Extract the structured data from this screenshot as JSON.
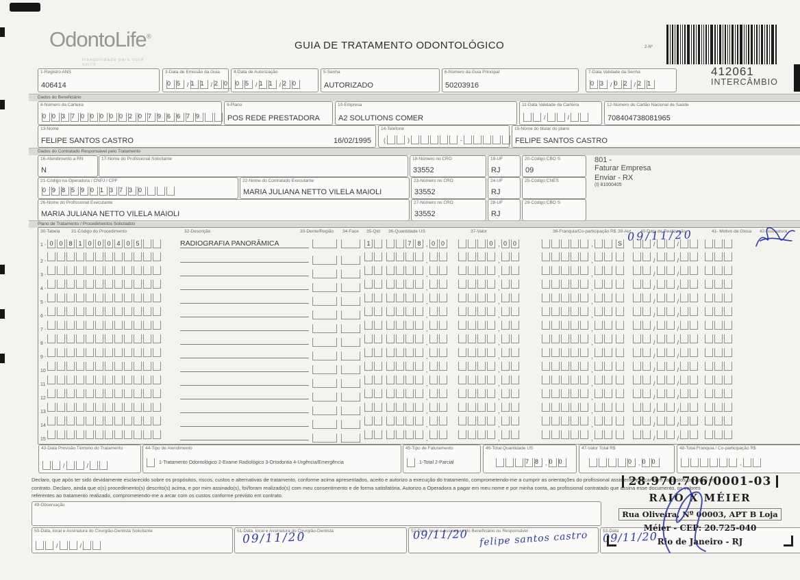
{
  "brand": {
    "name": "OdontoLife",
    "reg": "®",
    "tagline": "tranquilidade para você sorrir"
  },
  "title": "GUIA DE TRATAMENTO ODONTOLÓGICO",
  "codes": {
    "barcode_label": "2-Nº",
    "number": "412061",
    "exchange": "INTERCÂMBIO"
  },
  "header": {
    "registro_ans": {
      "label": "1-Registro ANS",
      "value": "406414"
    },
    "emissao": {
      "label": "3-Data de Emissão da Guia",
      "digits": [
        "0",
        "5",
        "/",
        "1",
        "1",
        "/",
        "2",
        "0"
      ]
    },
    "autorizacao": {
      "label": "4-Data de Autorização",
      "digits": [
        "0",
        "5",
        "/",
        "1",
        "1",
        "/",
        "2",
        "0"
      ]
    },
    "senha": {
      "label": "5-Senha",
      "value": "AUTORIZADO"
    },
    "guia_principal": {
      "label": "6-Número da Guia Principal",
      "value": "50203916"
    },
    "validade_senha": {
      "label": "7-Data Validade da Senha",
      "digits": [
        "0",
        "3",
        "/",
        "0",
        "2",
        "/",
        "2",
        "1"
      ]
    }
  },
  "sections": {
    "beneficiario": "Dados do Beneficiário",
    "contratado": "Dados do Contratado Responsável pelo Tratamento",
    "plano": "Plano de Tratamento / Procedimentos Solicitados"
  },
  "beneficiario": {
    "carteira": {
      "label": "8-Número da Carteira",
      "digits": [
        "0",
        "0",
        "3",
        "7",
        "0",
        "0",
        "0",
        "0",
        "0",
        "2",
        "0",
        "7",
        "9",
        "6",
        "6",
        "7",
        "9",
        "",
        "",
        ""
      ]
    },
    "plano": {
      "label": "9-Plano",
      "value": "POS REDE PRESTADORA"
    },
    "empresa": {
      "label": "10-Empresa",
      "value": "A2 SOLUTIONS COMER"
    },
    "validade_carteira": {
      "label": "11-Data Validade da Carteira",
      "digits": [
        "",
        "",
        "/",
        "",
        "",
        "/",
        "",
        ""
      ]
    },
    "cns": {
      "label": "12-Número do Cartão Nacional de Saúde",
      "value": "708404738081965"
    },
    "nome": {
      "label": "13-Nome",
      "value": "FELIPE SANTOS CASTRO",
      "nascimento": "16/02/1995"
    },
    "telefone": {
      "label": "14-Telefone",
      "digits": [
        "(",
        "",
        "",
        ")",
        "",
        "",
        "",
        "",
        "",
        "-",
        "",
        "",
        "",
        "",
        ""
      ]
    },
    "titular": {
      "label": "15-Nome do titular do plano",
      "value": "FELIPE SANTOS CASTRO"
    }
  },
  "contratado": {
    "rn": {
      "label": "16-Atendimento a RN",
      "value": "N"
    },
    "solicitante": {
      "label": "17-Nome do Profissional Solicitante",
      "value": ""
    },
    "cro_solicitante": {
      "label": "18-Número no CRO",
      "value": "33552"
    },
    "uf_solicitante": {
      "label": "19-UF",
      "value": "RJ"
    },
    "cbo_solicitante": {
      "label": "20-Código CBO S",
      "value": "09"
    },
    "routing": {
      "line1": "801 -",
      "line2": "Faturar Empresa",
      "line3": "Enviar - RX",
      "line4": "(I) 81000405"
    },
    "codigo_operadora": {
      "label": "21-Código na Operadora / CNPJ / CPF",
      "digits": [
        "0",
        "9",
        "8",
        "5",
        "9",
        "0",
        "1",
        "3",
        "7",
        "3",
        "0",
        "",
        "",
        ""
      ]
    },
    "executante": {
      "label": "22-Nome do Contratado Executante",
      "value": "MARIA JULIANA NETTO VILELA MAIOLI"
    },
    "cro_executante": {
      "label": "23-Número no CRO",
      "value": "33552"
    },
    "uf_executante": {
      "label": "24-UF",
      "value": "RJ"
    },
    "cnes": {
      "label": "25-Código CNES",
      "value": ""
    },
    "prof_executante": {
      "label": "26-Nome do Profissional Executante",
      "value": "MARIA JULIANA NETTO VILELA MAIOLI"
    },
    "cro_prof": {
      "label": "27-Número no CRO",
      "value": "33552"
    },
    "uf_prof": {
      "label": "28-UF",
      "value": "RJ"
    },
    "cbo_prof": {
      "label": "29-Código CBO S",
      "value": ""
    }
  },
  "procedures": {
    "headers": {
      "tabela": "30-Tabela",
      "codigo": "31-Código do Procedimento",
      "descricao": "32-Descrição",
      "dente": "33-Dente/Região",
      "face": "34-Face",
      "qtd": "35-Qtd",
      "us": "36-Quantidade US",
      "valor": "37-Valor",
      "franquia": "38-Franquia/Co-participação R$",
      "aut": "39-Aut",
      "data": "40-Data de Realização",
      "motivo": "41- Motivo da Glosa",
      "assinatura": "42-Assinatura"
    },
    "row1": {
      "num": "1 -",
      "tabela": [
        "0",
        "0"
      ],
      "codigo": [
        "8",
        "1",
        "0",
        "0",
        "0",
        "4",
        "0",
        "5",
        "",
        ""
      ],
      "descricao": "RADIOGRAFIA PANORÂMICA",
      "qtd": [
        "1",
        ""
      ],
      "us": [
        "",
        "",
        "7",
        "8",
        ",",
        "0",
        "0"
      ],
      "valor": [
        "",
        "",
        "",
        "0",
        ",",
        "0",
        "0"
      ],
      "franquia": [
        "",
        "",
        "",
        "",
        "",
        ",",
        "",
        ""
      ],
      "aut": [
        "S"
      ],
      "data": [
        "",
        "",
        "/",
        "",
        "",
        "/",
        "",
        ""
      ],
      "motivo": [
        "",
        "",
        ""
      ],
      "data_handwritten": "09/11/20"
    },
    "empty_row_numbers": [
      "2",
      "3",
      "4",
      "5",
      "6",
      "7",
      "8",
      "9",
      "10",
      "11",
      "12",
      "13",
      "14",
      "15"
    ]
  },
  "totals": {
    "termino": {
      "label": "43-Data Previsão Término do Tratamento",
      "digits": [
        "",
        "",
        "/",
        "",
        "",
        "/",
        "",
        ""
      ]
    },
    "tipo_atendimento": {
      "label": "44-Tipo de Atendimento",
      "options": "1-Tratamento Odontológico  2-Exame Radiológico  3-Ortodontia  4-Urgência/Emergência"
    },
    "tipo_faturamento": {
      "label": "45-Tipo de Faturamento",
      "options": "1-Total  2-Parcial"
    },
    "total_us": {
      "label": "46-Total Quantidade US",
      "digits": [
        "",
        "",
        "",
        "7",
        "8",
        ",",
        "0",
        "0"
      ]
    },
    "valor_total": {
      "label": "47-Valor Total R$",
      "digits": [
        "",
        "",
        "",
        "",
        "0",
        ",",
        "0",
        "0"
      ]
    },
    "total_franquia": {
      "label": "48-Total Franquia / Co-participação R$",
      "digits": [
        "",
        "",
        "",
        "",
        "",
        "",
        ",",
        "",
        ""
      ]
    }
  },
  "declaration": {
    "line1": "Declaro, que após ter sido devidamente esclarecido sobre os propósitos, riscos, custos e alternativas de tratamento, conforme acima apresentados, aceito e autorizo a execução do tratamento, comprometendo-me a cumprir as orientações do profissional assistente e arcar com os custos previstos em",
    "line2": "contrato. Declaro, ainda que o(s) procedimento(s) descrito(s) acima, e por mim assinado(s), foi/foram realizado(s) com meu consentimento e de forma satisfatória. Autorizo a Operadora a pagar em meu nome e por minha conta, ao profissional contratado que assina esse documento, os valores",
    "line3": "referentes ao tratamento realizado, comprometendo-me a arcar com os custos conforme previsto em contrato."
  },
  "observacao": {
    "label": "49-Observação",
    "value": ""
  },
  "signatures": {
    "s50": {
      "label": "50-Data, local e Assinatura do Cirurgião-Dentista Solicitante",
      "digits": [
        "",
        "",
        "/",
        "",
        "",
        "/",
        "",
        ""
      ]
    },
    "s51": {
      "label": "51-Data, local e Assinatura do Cirurgião-Dentista",
      "handwritten": "09/11/20"
    },
    "s52": {
      "label": "52-Data, local e Assinatura do Beneficiário ou Responsável",
      "handwritten_date": "09/11/20",
      "handwritten_name": "felipe santos castro"
    },
    "s53": {
      "label": "53-Data",
      "handwritten": "09/11/20"
    }
  },
  "stamp": {
    "cnpj": "28.970.706/0001-03",
    "name": "RAIO X MÉIER",
    "address": "Rua Oliveira, Nº 00003, APT B Loja",
    "cep": "Méier - CEP: 20.725-040",
    "city": "Rio de Janeiro - RJ"
  },
  "colors": {
    "ink_blue": "#2b3aa5",
    "stamp_black": "#1f1c20",
    "paper": "#f5f3f0",
    "border": "#8f8d8a"
  }
}
